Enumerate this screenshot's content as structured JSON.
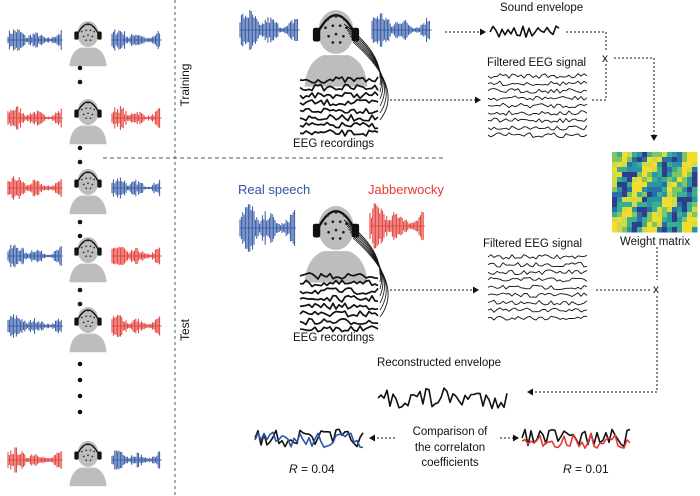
{
  "labels": {
    "training": "Training",
    "test": "Test",
    "sound_envelope": "Sound envelope",
    "filtered_eeg_top": "Filtered EEG signal",
    "filtered_eeg_bottom": "Filtered EEG signal",
    "eeg_recordings_top": "EEG recordings",
    "eeg_recordings_bottom": "EEG recordings",
    "real_speech": "Real speech",
    "jabberwocky": "Jabberwocky",
    "weight_matrix": "Weight matrix",
    "reconstructed_envelope": "Reconstructed envelope",
    "comparison_line1": "Comparison of",
    "comparison_line2": "the correlaton",
    "comparison_line3": "coefficients",
    "r_prefix": "R",
    "r_left": " = 0.04",
    "r_right": " = 0.01",
    "multiply_top": "x",
    "multiply_bottom": "x"
  },
  "colors": {
    "real_speech": "#2f55a4",
    "jabberwocky": "#e23a34",
    "head": "#bdbdbd",
    "ink": "#111111"
  }
}
